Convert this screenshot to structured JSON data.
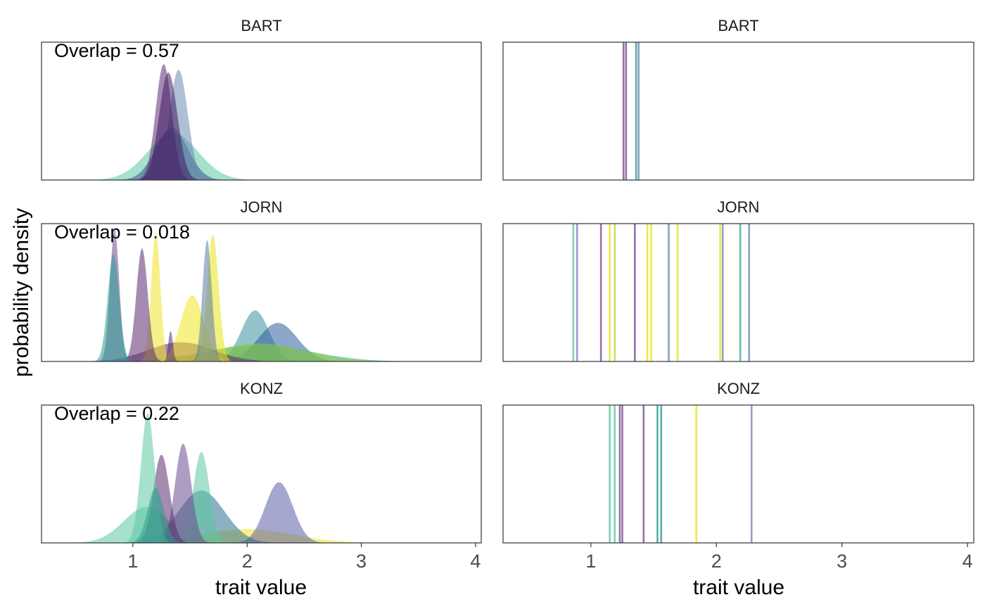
{
  "figure": {
    "xlabel": "trait value",
    "ylabel": "probability density"
  },
  "chart_data": [
    {
      "type": "area",
      "panel": "BART density",
      "title": "BART",
      "annotation": "Overlap = 0.57",
      "xlim": [
        0.2,
        4.05
      ],
      "xticks": [
        1,
        2,
        3,
        4
      ],
      "ymax": 1.0,
      "grid": false,
      "series": [
        {
          "color": "#5DC9A3",
          "mean": 1.35,
          "sd": 0.22,
          "peak": 0.34
        },
        {
          "color": "#3B528B",
          "mean": 1.34,
          "sd": 0.14,
          "peak": 0.38
        },
        {
          "color": "#6A8CB3",
          "mean": 1.4,
          "sd": 0.08,
          "peak": 0.8
        },
        {
          "color": "#5B2C6F",
          "mean": 1.27,
          "sd": 0.07,
          "peak": 0.84
        },
        {
          "color": "#3F1C63",
          "mean": 1.31,
          "sd": 0.08,
          "peak": 0.78
        }
      ]
    },
    {
      "type": "rug",
      "panel": "BART values",
      "title": "BART",
      "xlim": [
        0.3,
        4.05
      ],
      "xticks": [
        1,
        2,
        3,
        4
      ],
      "values": [
        {
          "x": 1.26,
          "color": "#7B4F91"
        },
        {
          "x": 1.28,
          "color": "#7B4F91"
        },
        {
          "x": 1.36,
          "color": "#2E9E8F"
        },
        {
          "x": 1.38,
          "color": "#6A8CB3"
        }
      ]
    },
    {
      "type": "area",
      "panel": "JORN density",
      "title": "JORN",
      "annotation": "Overlap = 0.018",
      "xlim": [
        0.2,
        4.05
      ],
      "xticks": [
        1,
        2,
        3,
        4
      ],
      "ymax": 1.0,
      "grid": false,
      "series": [
        {
          "color": "#3E8FA0",
          "mean": 2.07,
          "sd": 0.12,
          "peak": 0.37
        },
        {
          "color": "#2E5E9E",
          "mean": 2.27,
          "sd": 0.17,
          "peak": 0.28
        },
        {
          "color": "#2BA88F",
          "mean": 2.1,
          "sd": 0.45,
          "peak": 0.12
        },
        {
          "color": "#9CCB3B",
          "mean": 2.1,
          "sd": 0.4,
          "peak": 0.13
        },
        {
          "color": "#5B2C6F",
          "mean": 1.42,
          "sd": 0.28,
          "peak": 0.14
        },
        {
          "color": "#F2E51D",
          "mean": 1.52,
          "sd": 0.1,
          "peak": 0.48
        },
        {
          "color": "#E7E419",
          "mean": 1.7,
          "sd": 0.05,
          "peak": 0.92
        },
        {
          "color": "#F0E32A",
          "mean": 1.2,
          "sd": 0.04,
          "peak": 0.94
        },
        {
          "color": "#5B7BA8",
          "mean": 1.65,
          "sd": 0.04,
          "peak": 0.88
        },
        {
          "color": "#5B2C6F",
          "mean": 1.08,
          "sd": 0.05,
          "peak": 0.82
        },
        {
          "color": "#6B4C8F",
          "mean": 0.84,
          "sd": 0.04,
          "peak": 0.96
        },
        {
          "color": "#2A9D8F",
          "mean": 0.83,
          "sd": 0.05,
          "peak": 0.78
        },
        {
          "color": "#5B2C6F",
          "mean": 1.33,
          "sd": 0.02,
          "peak": 0.22
        }
      ]
    },
    {
      "type": "rug",
      "panel": "JORN values",
      "title": "JORN",
      "xlim": [
        0.3,
        4.05
      ],
      "xticks": [
        1,
        2,
        3,
        4
      ],
      "values": [
        {
          "x": 0.86,
          "color": "#5DC9A3"
        },
        {
          "x": 0.89,
          "color": "#8E7CC3"
        },
        {
          "x": 1.08,
          "color": "#7B4F91"
        },
        {
          "x": 1.15,
          "color": "#E7E419"
        },
        {
          "x": 1.19,
          "color": "#B5D84A"
        },
        {
          "x": 1.35,
          "color": "#7B4F91"
        },
        {
          "x": 1.45,
          "color": "#E7E419"
        },
        {
          "x": 1.48,
          "color": "#E7E419"
        },
        {
          "x": 1.62,
          "color": "#6A8CB3"
        },
        {
          "x": 1.69,
          "color": "#E7E419"
        },
        {
          "x": 2.03,
          "color": "#E7E419"
        },
        {
          "x": 2.05,
          "color": "#6A8CB3"
        },
        {
          "x": 2.19,
          "color": "#3FAF95"
        },
        {
          "x": 2.26,
          "color": "#6A8CB3"
        }
      ]
    },
    {
      "type": "area",
      "panel": "KONZ density",
      "title": "KONZ",
      "annotation": "Overlap = 0.22",
      "xlim": [
        0.2,
        4.05
      ],
      "xticks": [
        1,
        2,
        3,
        4
      ],
      "ymax": 1.0,
      "grid": false,
      "series": [
        {
          "color": "#EFE42A",
          "mean": 2.0,
          "sd": 0.4,
          "peak": 0.1
        },
        {
          "color": "#5B5EA6",
          "mean": 2.28,
          "sd": 0.12,
          "peak": 0.44
        },
        {
          "color": "#2F6F8F",
          "mean": 1.6,
          "sd": 0.2,
          "peak": 0.38
        },
        {
          "color": "#5DC9A3",
          "mean": 1.12,
          "sd": 0.2,
          "peak": 0.26
        },
        {
          "color": "#5DC9A3",
          "mean": 1.6,
          "sd": 0.07,
          "peak": 0.66
        },
        {
          "color": "#6B4C8F",
          "mean": 1.44,
          "sd": 0.07,
          "peak": 0.72
        },
        {
          "color": "#5B2C6F",
          "mean": 1.25,
          "sd": 0.07,
          "peak": 0.64
        },
        {
          "color": "#5DC9A3",
          "mean": 1.13,
          "sd": 0.06,
          "peak": 0.94
        },
        {
          "color": "#2E9E8F",
          "mean": 1.2,
          "sd": 0.07,
          "peak": 0.4
        }
      ]
    },
    {
      "type": "rug",
      "panel": "KONZ values",
      "title": "KONZ",
      "xlim": [
        0.3,
        4.05
      ],
      "xticks": [
        1,
        2,
        3,
        4
      ],
      "values": [
        {
          "x": 1.15,
          "color": "#5DC9A3"
        },
        {
          "x": 1.19,
          "color": "#5DC9A3"
        },
        {
          "x": 1.23,
          "color": "#7B4F91"
        },
        {
          "x": 1.25,
          "color": "#7B4F91"
        },
        {
          "x": 1.42,
          "color": "#7B4F91"
        },
        {
          "x": 1.53,
          "color": "#2E9E8F"
        },
        {
          "x": 1.56,
          "color": "#2E9E8F"
        },
        {
          "x": 1.84,
          "color": "#E7E419"
        },
        {
          "x": 2.28,
          "color": "#8E7CC3"
        }
      ]
    }
  ]
}
